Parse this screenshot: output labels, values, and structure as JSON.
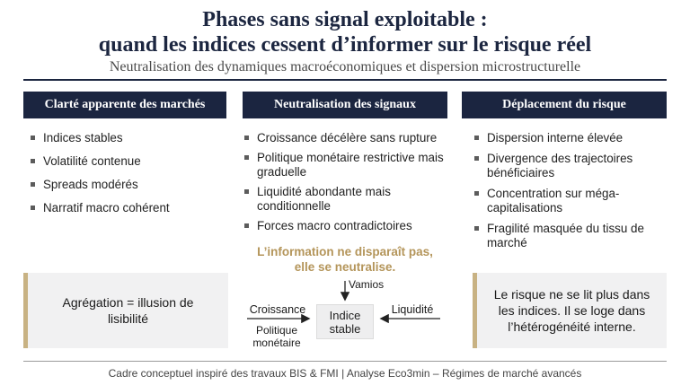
{
  "header": {
    "title_line1": "Phases sans signal exploitable :",
    "title_line2": "quand les indices cessent d’informer sur le risque réel",
    "subtitle": "Neutralisation des dynamiques macroéconomiques et dispersion microstructurelle"
  },
  "columns": [
    {
      "title": "Clarté apparente des marchés",
      "bullets": [
        "Indices stables",
        "Volatilité contenue",
        "Spreads modérés",
        "Narratif macro cohérent"
      ]
    },
    {
      "title": "Neutralisation des signaux",
      "bullets": [
        "Croissance décélère sans rupture",
        "Politique monétaire restrictive mais graduelle",
        "Liquidité abondante mais conditionnelle",
        "Forces macro contradictoires"
      ]
    },
    {
      "title": "Déplacement du risque",
      "bullets": [
        "Dispersion interne élevée",
        "Divergence des trajectoires bénéficiaires",
        "Concentration sur méga-capitalisations",
        "Fragilité masquée du tissu de marché"
      ]
    }
  ],
  "tagline": {
    "line1": "L’information ne disparaît pas,",
    "line2": "elle se neutralise."
  },
  "left_box": {
    "line1": "Agrégation = illusion de",
    "line2": "lisibilité"
  },
  "right_box": {
    "line1": "Le risque ne se lit plus dans",
    "line2": "les indices. Il se loge dans",
    "line3": "l’hétérogénéité interne."
  },
  "flow": {
    "top": "Vamios",
    "left_top": "Croissance",
    "left_bottom_1": "Politique",
    "left_bottom_2": "monétaire",
    "right": "Liquidité",
    "center_1": "Indice",
    "center_2": "stable"
  },
  "footer": "Cadre conceptuel inspiré des travaux BIS & FMI | Analyse Eco3min – Régimes de marché avancés",
  "colors": {
    "navy": "#1b2540",
    "gold": "#b4955a",
    "box_bg": "#f1f1f2"
  }
}
